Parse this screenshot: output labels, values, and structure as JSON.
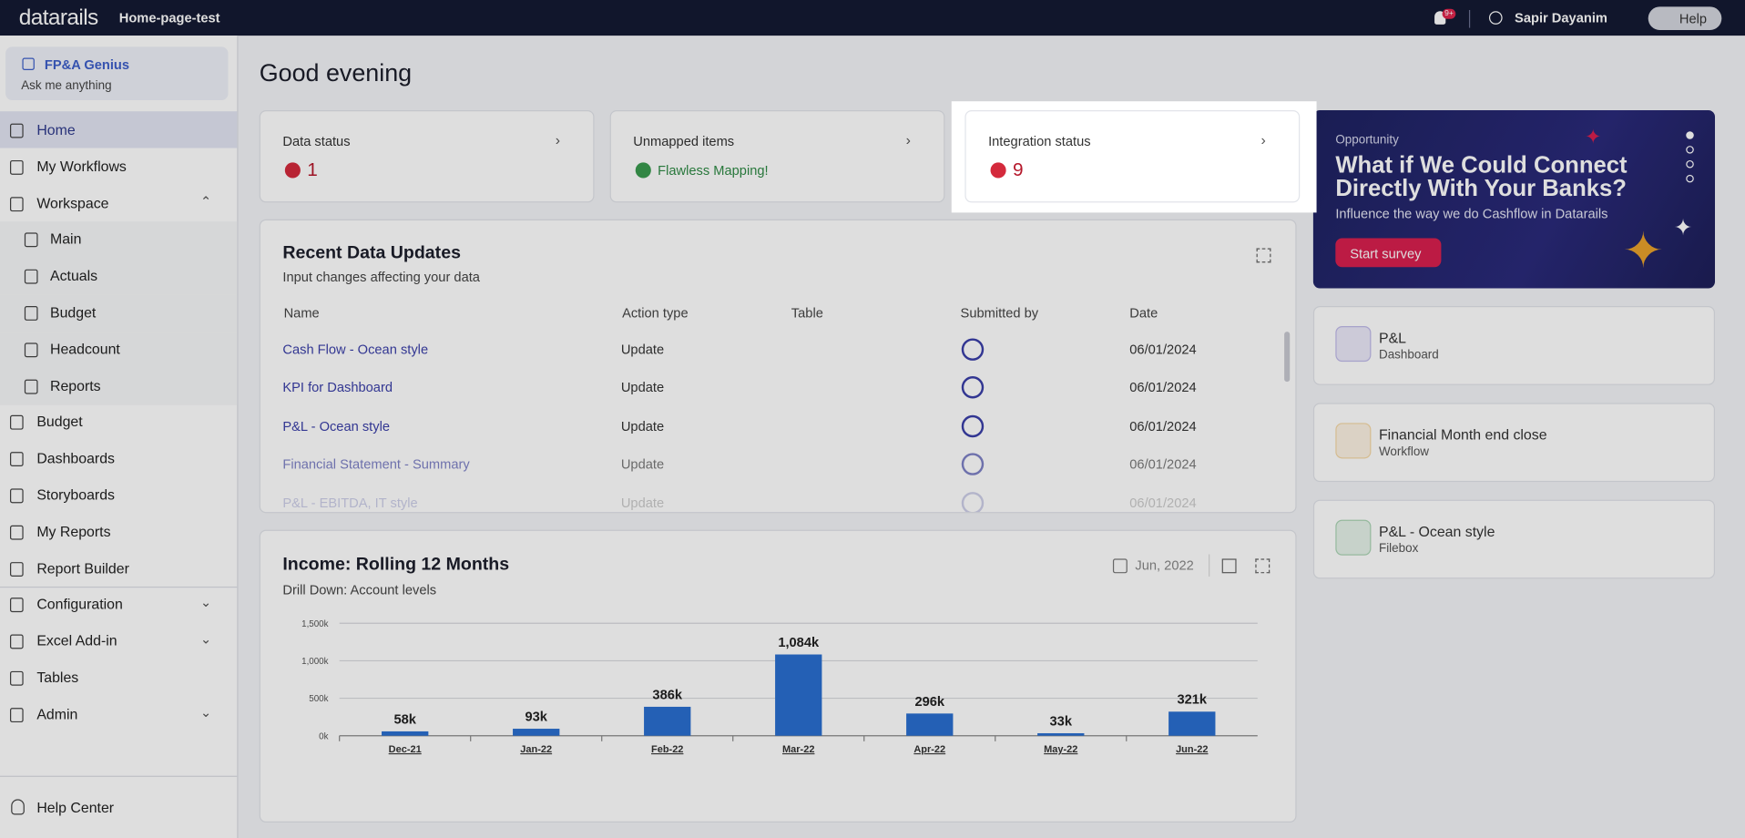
{
  "top_bar": {
    "logo": "datarails",
    "workspace": "Home-page-test",
    "notification_badge": "9+",
    "user": "Sapir Dayanim",
    "help": "Help"
  },
  "sidebar": {
    "genius_title": "FP&A Genius",
    "genius_prompt": "Ask me anything",
    "items": [
      {
        "label": "Home"
      },
      {
        "label": "My Workflows"
      },
      {
        "label": "Workspace",
        "children": [
          {
            "label": "Main"
          },
          {
            "label": "Actuals"
          },
          {
            "label": "Budget"
          },
          {
            "label": "Headcount"
          },
          {
            "label": "Reports"
          }
        ]
      },
      {
        "label": "Budget"
      },
      {
        "label": "Dashboards"
      },
      {
        "label": "Storyboards"
      },
      {
        "label": "My Reports"
      },
      {
        "label": "Report Builder"
      },
      {
        "label": "Configuration"
      },
      {
        "label": "Excel Add-in"
      },
      {
        "label": "Tables"
      },
      {
        "label": "Admin"
      }
    ],
    "help_center": "Help Center"
  },
  "greeting": "Good evening",
  "status_cards": [
    {
      "title": "Data status",
      "value": 1
    },
    {
      "title": "Unmapped items",
      "value": "Flawless Mapping!"
    },
    {
      "title": "Integration status",
      "value": 9
    }
  ],
  "promo": {
    "tag": "Opportunity",
    "title": "What if We Could Connect Directly With Your Banks?",
    "subtitle": "Influence the way we do Cashflow in Datarails",
    "button": "Start survey"
  },
  "shortcuts": [
    {
      "title": "P&L",
      "type": "Dashboard"
    },
    {
      "title": "Financial Month end close",
      "type": "Workflow"
    },
    {
      "title": "P&L - Ocean style",
      "type": "Filebox"
    }
  ],
  "recent_updates": {
    "title": "Recent Data Updates",
    "subtitle": "Input changes affecting your data",
    "columns": [
      "Name",
      "Action type",
      "Table",
      "Submitted by",
      "Date"
    ],
    "rows": [
      {
        "name": "Cash Flow - Ocean style",
        "action": "Update",
        "date": "06/01/2024"
      },
      {
        "name": "KPI for Dashboard",
        "action": "Update",
        "date": "06/01/2024"
      },
      {
        "name": "P&L - Ocean style",
        "action": "Update",
        "date": "06/01/2024"
      },
      {
        "name": "Financial Statement - Summary",
        "action": "Update",
        "date": "06/01/2024"
      },
      {
        "name": "P&L - EBITDA, IT style",
        "action": "Update",
        "date": "06/01/2024"
      }
    ]
  },
  "income": {
    "title": "Income: Rolling 12 Months",
    "subtitle": "Drill Down: Account levels",
    "period": "Jun, 2022",
    "chart": {
      "type": "bar",
      "categories": [
        "Dec-21",
        "Jan-22",
        "Feb-22",
        "Mar-22",
        "Apr-22",
        "May-22",
        "Jun-22"
      ],
      "values": [
        58000,
        93000,
        386000,
        1084000,
        296000,
        33000,
        321000
      ],
      "value_labels": [
        "58k",
        "93k",
        "386k",
        "1,084k",
        "296k",
        "33k",
        "321k"
      ],
      "color": "#2a6fd0",
      "ylim": [
        0,
        1500000
      ],
      "yticks": [
        {
          "value": 0,
          "label": "0k"
        },
        {
          "value": 500000,
          "label": "500k"
        },
        {
          "value": 1000000,
          "label": "1,000k"
        },
        {
          "value": 1500000,
          "label": "1,500k"
        }
      ],
      "grid": true
    }
  }
}
